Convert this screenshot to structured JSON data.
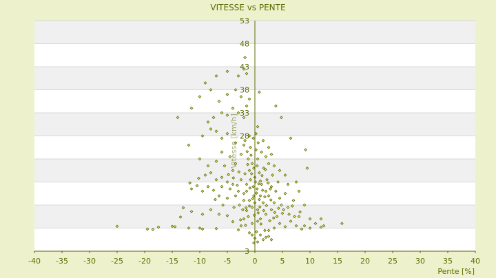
{
  "chart_data": {
    "type": "scatter",
    "title": "VITESSE vs PENTE",
    "xlabel": "Pente [%]",
    "ylabel": "Vitesse [km/h]",
    "xlim": [
      -40,
      40
    ],
    "ylim": [
      3,
      53
    ],
    "x_ticks": [
      -40,
      -35,
      -30,
      -25,
      -20,
      -15,
      -10,
      -5,
      0,
      5,
      10,
      15,
      20,
      25,
      30,
      35,
      40
    ],
    "y_ticks": [
      3,
      8,
      13,
      18,
      23,
      28,
      33,
      38,
      43,
      48,
      53
    ],
    "y_tick_labels_shown": [
      "3",
      "",
      "",
      "",
      "",
      "28",
      "33",
      "38",
      "43",
      "48",
      "53"
    ],
    "grid": "horizontal alternating bands",
    "legend": "none",
    "colors": {
      "page_background": "#eef2cc",
      "plot_background": "#ffffff",
      "band": "#f0f0f0",
      "gridline": "#d8d8d8",
      "marker_fill": "#e6e87a",
      "marker_edge": "#5c6b00",
      "text": "#5c6b00",
      "axis": "#5c6b00"
    },
    "series": [
      {
        "marker": "diamond",
        "points": [
          [
            -25.0,
            8.4
          ],
          [
            -19.5,
            7.8
          ],
          [
            -18.5,
            7.7
          ],
          [
            -17.5,
            8.2
          ],
          [
            -15.0,
            8.4
          ],
          [
            -14.5,
            8.3
          ],
          [
            -13.5,
            10.4
          ],
          [
            -12.0,
            8.0
          ],
          [
            -11.5,
            11.6
          ],
          [
            -13.0,
            12.4
          ],
          [
            -10.0,
            8.0
          ],
          [
            -9.5,
            7.8
          ],
          [
            -7.0,
            7.9
          ],
          [
            -9.5,
            11.0
          ],
          [
            -8.0,
            12.0
          ],
          [
            -6.5,
            11.0
          ],
          [
            -5.8,
            13.0
          ],
          [
            -6.5,
            15.0
          ],
          [
            -7.2,
            14.2
          ],
          [
            -5.0,
            10.7
          ],
          [
            -4.0,
            9.4
          ],
          [
            -3.0,
            7.6
          ],
          [
            -2.5,
            8.5
          ],
          [
            -2.0,
            10.0
          ],
          [
            -1.5,
            11.8
          ],
          [
            -3.8,
            12.5
          ],
          [
            -5.0,
            14.5
          ],
          [
            -4.5,
            16.5
          ],
          [
            -6.0,
            17.0
          ],
          [
            -7.5,
            16.2
          ],
          [
            -8.5,
            17.0
          ],
          [
            -9.5,
            16.0
          ],
          [
            -10.5,
            17.2
          ],
          [
            -11.5,
            16.5
          ],
          [
            -11.8,
            17.8
          ],
          [
            -10.2,
            18.8
          ],
          [
            -9.0,
            19.5
          ],
          [
            -8.0,
            20.0
          ],
          [
            -7.0,
            18.5
          ],
          [
            -6.0,
            19.0
          ],
          [
            -5.0,
            18.0
          ],
          [
            -4.0,
            17.5
          ],
          [
            -3.0,
            16.0
          ],
          [
            -2.0,
            15.5
          ],
          [
            -1.0,
            14.0
          ],
          [
            -0.5,
            12.5
          ],
          [
            -4.0,
            20.5
          ],
          [
            -5.5,
            21.5
          ],
          [
            -7.0,
            22.5
          ],
          [
            -8.5,
            21.5
          ],
          [
            -10.0,
            23.0
          ],
          [
            -6.0,
            24.5
          ],
          [
            -4.5,
            23.5
          ],
          [
            -3.5,
            22.0
          ],
          [
            -2.5,
            24.0
          ],
          [
            -2.0,
            26.0
          ],
          [
            -3.5,
            26.5
          ],
          [
            -5.0,
            28.5
          ],
          [
            -6.0,
            27.5
          ],
          [
            -7.0,
            29.0
          ],
          [
            -8.0,
            29.5
          ],
          [
            -9.5,
            28.0
          ],
          [
            -12.0,
            26.0
          ],
          [
            -8.5,
            31.0
          ],
          [
            -7.5,
            32.0
          ],
          [
            -6.0,
            33.0
          ],
          [
            -5.0,
            32.5
          ],
          [
            -4.0,
            34.0
          ],
          [
            -3.0,
            33.0
          ],
          [
            -2.0,
            32.0
          ],
          [
            -1.5,
            34.5
          ],
          [
            -1.0,
            36.0
          ],
          [
            -2.5,
            36.5
          ],
          [
            -3.5,
            38.0
          ],
          [
            -5.0,
            37.0
          ],
          [
            -6.5,
            35.5
          ],
          [
            -8.0,
            38.0
          ],
          [
            -9.0,
            39.5
          ],
          [
            -10.0,
            36.5
          ],
          [
            -11.5,
            34.0
          ],
          [
            -14.0,
            32.0
          ],
          [
            -7.0,
            41.0
          ],
          [
            -5.0,
            42.0
          ],
          [
            -2.0,
            42.5
          ],
          [
            -3.0,
            41.0
          ],
          [
            -1.8,
            45.0
          ],
          [
            -1.5,
            41.5
          ],
          [
            0.8,
            37.5
          ],
          [
            3.8,
            34.5
          ],
          [
            4.8,
            32.0
          ],
          [
            6.5,
            27.5
          ],
          [
            9.2,
            25.0
          ],
          [
            9.5,
            21.0
          ],
          [
            7.5,
            18.0
          ],
          [
            6.0,
            17.5
          ],
          [
            8.0,
            16.0
          ],
          [
            7.0,
            14.0
          ],
          [
            9.0,
            13.0
          ],
          [
            10.0,
            10.0
          ],
          [
            11.0,
            9.0
          ],
          [
            12.0,
            10.0
          ],
          [
            12.5,
            8.5
          ],
          [
            15.8,
            9.0
          ],
          [
            12.0,
            8.2
          ],
          [
            10.0,
            8.0
          ],
          [
            9.0,
            8.5
          ],
          [
            8.5,
            7.8
          ],
          [
            7.5,
            8.5
          ],
          [
            8.0,
            10.5
          ],
          [
            6.5,
            9.5
          ],
          [
            5.5,
            8.3
          ],
          [
            4.5,
            9.0
          ],
          [
            3.5,
            8.0
          ],
          [
            2.5,
            7.5
          ],
          [
            2.0,
            6.0
          ],
          [
            1.5,
            5.5
          ],
          [
            0.5,
            5.0
          ],
          [
            0.0,
            5.8
          ],
          [
            -0.5,
            6.5
          ],
          [
            -1.0,
            7.0
          ],
          [
            1.0,
            6.5
          ],
          [
            2.5,
            6.2
          ],
          [
            3.0,
            5.5
          ],
          [
            1.8,
            7.5
          ],
          [
            0.3,
            7.2
          ],
          [
            -0.2,
            4.8
          ],
          [
            4.0,
            10.5
          ],
          [
            5.0,
            11.2
          ],
          [
            6.0,
            12.5
          ],
          [
            3.0,
            12.0
          ],
          [
            2.0,
            11.0
          ],
          [
            1.0,
            10.0
          ],
          [
            0.5,
            9.5
          ],
          [
            -0.5,
            9.0
          ],
          [
            -1.2,
            10.5
          ],
          [
            5.5,
            15.5
          ],
          [
            4.5,
            14.5
          ],
          [
            3.5,
            13.5
          ],
          [
            2.5,
            15.0
          ],
          [
            1.5,
            13.5
          ],
          [
            0.5,
            12.0
          ],
          [
            0.0,
            13.5
          ],
          [
            -0.2,
            15.0
          ],
          [
            0.4,
            16.5
          ],
          [
            1.2,
            17.5
          ],
          [
            2.2,
            18.5
          ],
          [
            3.2,
            19.5
          ],
          [
            4.2,
            18.0
          ],
          [
            3.0,
            17.0
          ],
          [
            2.0,
            16.0
          ],
          [
            1.0,
            15.0
          ],
          [
            -0.3,
            17.0
          ],
          [
            -0.8,
            18.5
          ],
          [
            -1.5,
            17.5
          ],
          [
            -2.5,
            18.5
          ],
          [
            -1.8,
            19.8
          ],
          [
            -1.0,
            20.5
          ],
          [
            0.0,
            19.0
          ],
          [
            0.8,
            20.0
          ],
          [
            1.6,
            21.0
          ],
          [
            2.5,
            22.0
          ],
          [
            3.5,
            21.5
          ],
          [
            4.5,
            20.5
          ],
          [
            5.5,
            19.5
          ],
          [
            2.0,
            23.5
          ],
          [
            1.2,
            24.5
          ],
          [
            0.5,
            23.0
          ],
          [
            -0.5,
            22.0
          ],
          [
            -1.2,
            23.0
          ],
          [
            -0.8,
            25.5
          ],
          [
            0.2,
            25.0
          ],
          [
            0.6,
            26.5
          ],
          [
            -0.3,
            27.5
          ],
          [
            0.2,
            28.5
          ],
          [
            -1.0,
            28.0
          ],
          [
            -1.8,
            27.0
          ],
          [
            0.5,
            30.0
          ],
          [
            1.5,
            27.0
          ],
          [
            2.5,
            25.5
          ],
          [
            3.0,
            24.0
          ],
          [
            -1.5,
            16.0
          ],
          [
            -2.0,
            14.0
          ],
          [
            -2.8,
            13.0
          ],
          [
            -3.5,
            15.0
          ],
          [
            -2.2,
            12.0
          ],
          [
            -1.0,
            12.8
          ],
          [
            0.8,
            14.2
          ],
          [
            1.8,
            14.8
          ],
          [
            2.8,
            16.5
          ],
          [
            3.8,
            16.0
          ],
          [
            4.8,
            13.0
          ],
          [
            5.2,
            12.0
          ],
          [
            6.2,
            11.0
          ],
          [
            7.2,
            10.5
          ],
          [
            8.2,
            11.5
          ],
          [
            6.8,
            12.8
          ],
          [
            -0.6,
            19.8
          ],
          [
            0.4,
            21.5
          ],
          [
            -0.2,
            21.0
          ],
          [
            1.0,
            18.2
          ],
          [
            -1.3,
            21.8
          ],
          [
            0.7,
            17.6
          ],
          [
            -0.9,
            16.7
          ],
          [
            1.4,
            16.2
          ],
          [
            2.4,
            17.8
          ],
          [
            -0.4,
            14.4
          ],
          [
            0.9,
            12.6
          ],
          [
            1.6,
            11.8
          ],
          [
            -1.6,
            12.4
          ],
          [
            2.9,
            14.1
          ],
          [
            -2.9,
            20.2
          ],
          [
            -3.9,
            18.9
          ],
          [
            -4.8,
            19.6
          ],
          [
            -3.2,
            17.3
          ],
          [
            0.1,
            18.0
          ],
          [
            0.3,
            15.6
          ],
          [
            1.3,
            19.4
          ],
          [
            1.9,
            20.7
          ],
          [
            -0.7,
            23.8
          ],
          [
            -1.4,
            24.6
          ],
          [
            3.6,
            11.4
          ],
          [
            4.3,
            12.3
          ],
          [
            2.1,
            12.9
          ],
          [
            -0.1,
            10.8
          ],
          [
            0.6,
            11.3
          ],
          [
            1.1,
            8.9
          ],
          [
            2.7,
            9.6
          ],
          [
            3.4,
            10.2
          ],
          [
            -1.7,
            8.6
          ],
          [
            -2.6,
            9.8
          ]
        ]
      }
    ]
  }
}
